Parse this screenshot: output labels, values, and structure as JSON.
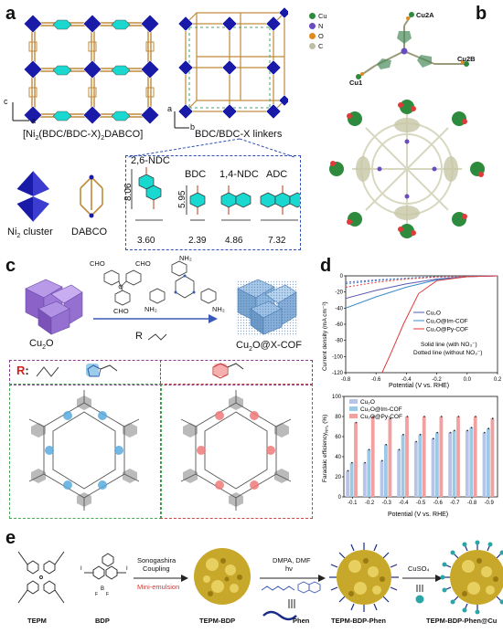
{
  "panels": {
    "a": {
      "label": "a",
      "mof_label_prefix": "[Ni",
      "mof_label_sub": "2",
      "mof_label_mid": "(BDC/BDC-X)",
      "mof_label_sub2": "2",
      "mof_label_suffix": "DABCO]",
      "linkers_label": "BDC/BDC-X linkers",
      "axis_c": "c",
      "axis_a": "a",
      "axis_a2": "a",
      "axis_b": "b",
      "cluster_label": "Ni",
      "cluster_sub": "2",
      "cluster_suffix": " cluster",
      "dabco_label": "DABCO",
      "linkers": [
        {
          "name": "2,6-NDC",
          "height": "8.06",
          "width": "3.60"
        },
        {
          "name": "BDC",
          "height": "5.95",
          "width": "2.39"
        },
        {
          "name": "1,4-NDC",
          "height": "",
          "width": "4.86"
        },
        {
          "name": "ADC",
          "height": "",
          "width": "7.32"
        }
      ]
    },
    "b": {
      "label": "b",
      "legend": [
        {
          "symbol": "Cu",
          "color": "#2e8b3e"
        },
        {
          "symbol": "N",
          "color": "#6a4cc2"
        },
        {
          "symbol": "O",
          "color": "#e08a1e"
        },
        {
          "symbol": "C",
          "color": "#bfbfa8"
        }
      ],
      "atoms": [
        "Cu2A",
        "Cu2B",
        "Cu1"
      ]
    },
    "c": {
      "label": "c",
      "left_label": "Cu",
      "left_sub": "2",
      "left_suffix": "O",
      "right_label": "Cu",
      "right_sub": "2",
      "right_suffix": "O@X-COF",
      "r_label": "R",
      "r_colon": ":",
      "r_letter": "R",
      "amine_groups": [
        "NH₂",
        "NH₂",
        "NH₂"
      ],
      "aldehyde_groups": [
        "CHO",
        "CHO",
        "CHO"
      ]
    },
    "d": {
      "label": "d",
      "top_chart": {
        "ylabel": "Current density (mA cm⁻²)",
        "xlabel": "Potential (V vs. RHE)",
        "xlim": [
          -0.8,
          0.2
        ],
        "ylim": [
          -120,
          0
        ],
        "xticks": [
          "-0.8",
          "-0.6",
          "-0.4",
          "-0.2",
          "0.0",
          "0.2"
        ],
        "yticks": [
          "0",
          "-20",
          "-40",
          "-60",
          "-80",
          "-100",
          "-120"
        ],
        "legend": [
          {
            "name": "Cu₂O",
            "color": "#5a5ab0"
          },
          {
            "name": "Cu₂O@Im-COF",
            "color": "#3a8cc8"
          },
          {
            "name": "Cu₂O@Py-COF",
            "color": "#e03a3a"
          }
        ],
        "note1": "Solid line (with NO₃⁻)",
        "note2": "Dotted line (without NO₃⁻)"
      },
      "bottom_chart": {
        "ylabel": "Faradaic efficiency",
        "ylabel_sub": "NH₃",
        "ylabel_suffix": " (%)",
        "xlabel": "Potential (V vs. RHE)",
        "categories": [
          "-0.1",
          "-0.2",
          "-0.3",
          "-0.4",
          "-0.5",
          "-0.6",
          "-0.7",
          "-0.8",
          "-0.9"
        ],
        "ylim": [
          0,
          100
        ],
        "yticks": [
          "0",
          "20",
          "40",
          "60",
          "80",
          "100"
        ],
        "series": [
          {
            "name": "Cu₂O",
            "color": "#b7c4e8",
            "values": [
              26,
              34,
              36,
              47,
              55,
              58,
              64,
              66,
              64
            ]
          },
          {
            "name": "Cu₂O@Im-COF",
            "color": "#9cc9e6",
            "values": [
              34,
              47,
              52,
              62,
              62,
              64,
              66,
              69,
              68
            ]
          },
          {
            "name": "Cu₂O@Py-COF",
            "color": "#f2a0a0",
            "values": [
              74,
              80,
              78,
              80,
              80,
              80,
              80,
              80,
              78
            ]
          }
        ]
      }
    },
    "e": {
      "label": "e",
      "tepm": "TEPM",
      "bdp": "BDP",
      "step1_top": "Sonogashira",
      "step1_mid": "Coupling",
      "step1_bottom": "Mini-emulsion",
      "product1": "TEPM-BDP",
      "step2_top": "DMPA, DMF",
      "step2_mid": "hν",
      "phen": "Phen",
      "product2": "TEPM-BDP-Phen",
      "step3": "CuSO₄",
      "product3": "TEPM-BDP-Phen@Cu"
    }
  }
}
